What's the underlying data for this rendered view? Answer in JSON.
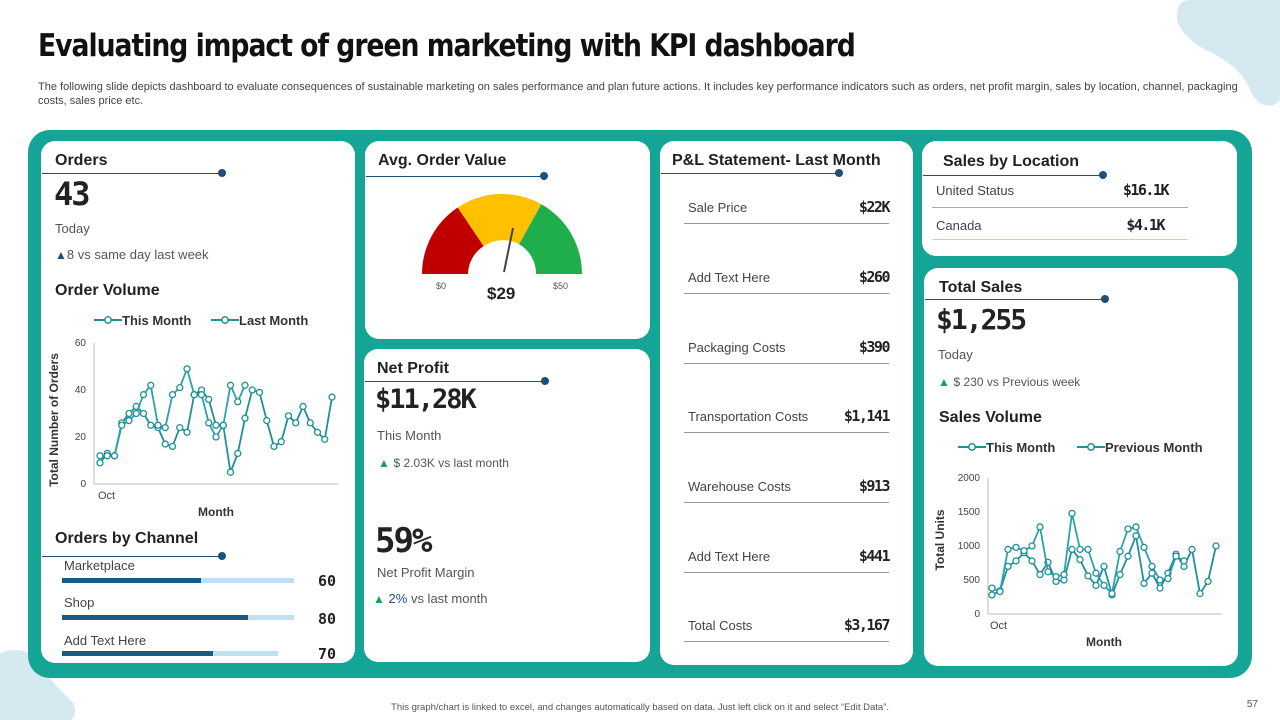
{
  "slide": {
    "title": "Evaluating impact of green marketing with KPI dashboard",
    "subtitle": "The following slide depicts dashboard to evaluate consequences of sustainable marketing on sales performance and plan future actions. It includes key performance indicators such as orders, net profit margin, sales by location, channel, packaging costs, sales price etc.",
    "footer": "This graph/chart is linked to excel, and changes automatically based on data. Just left click on it and select “Edit Data”.",
    "page_number": "57"
  },
  "colors": {
    "teal": "#14a596",
    "navy": "#1d4f7a",
    "line": "#1f8f9a",
    "gauge_red": "#c00000",
    "gauge_yellow": "#ffc000",
    "gauge_green": "#1fae4b"
  },
  "orders": {
    "header": "Orders",
    "value": "43",
    "period": "Today",
    "change_value": "8",
    "change_text": "vs  same day last week"
  },
  "order_volume": {
    "header": "Order Volume",
    "legend_this": "This Month",
    "legend_last": "Last Month"
  },
  "orders_by_channel": {
    "header": "Orders by Channel",
    "items": [
      {
        "label": "Marketplace",
        "value": "60",
        "fill": 0.6
      },
      {
        "label": "Shop",
        "value": "80",
        "fill": 0.8
      },
      {
        "label": "Add Text Here",
        "value": "70",
        "fill": 0.7
      }
    ]
  },
  "avg_order_value": {
    "header": "Avg. Order Value",
    "value": "$29",
    "min_label": "$0",
    "max_label": "$50"
  },
  "net_profit": {
    "header": "Net Profit",
    "value": "$11,28K",
    "period": "This Month",
    "change_text": "$ 2.03K vs last month",
    "margin_value": "59%",
    "margin_label": "Net Profit Margin",
    "margin_change": "2%",
    "margin_change_text": "vs last month"
  },
  "pl_statement": {
    "header": "P&L Statement- Last Month",
    "rows": [
      {
        "label": "Sale Price",
        "value": "$22K"
      },
      {
        "label": "Add Text Here",
        "value": "$260"
      },
      {
        "label": "Packaging Costs",
        "value": "$390"
      },
      {
        "label": "Transportation Costs",
        "value": "$1,141"
      },
      {
        "label": "Warehouse Costs",
        "value": "$913"
      },
      {
        "label": "Add Text Here",
        "value": "$441"
      },
      {
        "label": "Total Costs",
        "value": "$3,167"
      }
    ]
  },
  "sales_by_location": {
    "header": "Sales by Location",
    "rows": [
      {
        "label": "United Status",
        "value": "$16.1K"
      },
      {
        "label": "Canada",
        "value": "$4.1K"
      }
    ]
  },
  "total_sales": {
    "header": "Total Sales",
    "value": "$1,255",
    "period": "Today",
    "change_text": "$ 230 vs Previous  week"
  },
  "sales_volume": {
    "header": "Sales Volume",
    "legend_this": "This Month",
    "legend_prev": "Previous Month"
  },
  "chart_data": [
    {
      "type": "line",
      "title": "",
      "xlabel": "Month",
      "ylabel": "Total Number of Orders",
      "x_tick_label": "Oct",
      "ylim": [
        0,
        60
      ],
      "yticks": [
        0,
        20,
        40,
        60
      ],
      "grid": false,
      "legend": "top",
      "series": [
        {
          "name": "This Month",
          "values": [
            9,
            13,
            12,
            26,
            30,
            33,
            30,
            25,
            24,
            17,
            16,
            24,
            22,
            38,
            40,
            36,
            25,
            25,
            5,
            13,
            28,
            40,
            39,
            27,
            16,
            18,
            29,
            26,
            33,
            26,
            22,
            19,
            37
          ]
        },
        {
          "name": "Last Month",
          "values": [
            12,
            12,
            12,
            25,
            27,
            30,
            38,
            42,
            25,
            24,
            38,
            41,
            49,
            38,
            38,
            26,
            20,
            25,
            42,
            35,
            42
          ]
        }
      ]
    },
    {
      "type": "line",
      "title": "",
      "xlabel": "Month",
      "ylabel": "Total Units",
      "x_tick_label": "Oct",
      "ylim": [
        0,
        2000
      ],
      "yticks": [
        0,
        500,
        1000,
        1500,
        2000
      ],
      "grid": false,
      "legend": "top",
      "series": [
        {
          "name": "This Month",
          "values": [
            280,
            340,
            700,
            780,
            900,
            780,
            580,
            760,
            480,
            500,
            950,
            800,
            560,
            420,
            700,
            280,
            580,
            850,
            1150,
            450,
            600,
            380,
            600,
            880,
            700,
            950,
            300,
            480,
            1000
          ]
        },
        {
          "name": "Previous Month",
          "values": [
            380,
            330,
            950,
            980,
            930,
            1000,
            1280,
            620,
            550,
            580,
            1480,
            950,
            950,
            600,
            420,
            300,
            920,
            1250,
            1280,
            980,
            700,
            500,
            520,
            850,
            780
          ]
        }
      ]
    }
  ]
}
